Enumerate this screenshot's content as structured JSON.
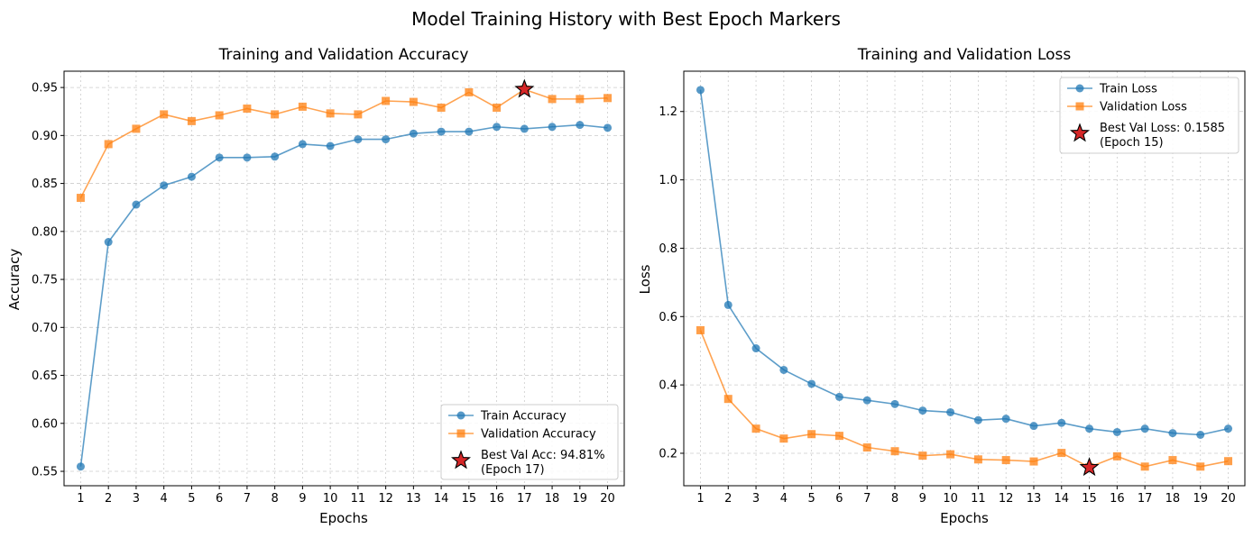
{
  "figure": {
    "suptitle": "Model Training History with Best Epoch Markers"
  },
  "chart_data": [
    {
      "type": "line",
      "title": "Training and Validation Accuracy",
      "xlabel": "Epochs",
      "ylabel": "Accuracy",
      "x": [
        1,
        2,
        3,
        4,
        5,
        6,
        7,
        8,
        9,
        10,
        11,
        12,
        13,
        14,
        15,
        16,
        17,
        18,
        19,
        20
      ],
      "xlim": [
        0.4,
        20.6
      ],
      "ylim": [
        0.535,
        0.967
      ],
      "yticks": [
        0.55,
        0.6,
        0.65,
        0.7,
        0.75,
        0.8,
        0.85,
        0.9,
        0.95
      ],
      "ytick_labels": [
        "0.55",
        "0.60",
        "0.65",
        "0.70",
        "0.75",
        "0.80",
        "0.85",
        "0.90",
        "0.95"
      ],
      "grid": true,
      "legend_position": "lower-right",
      "series": [
        {
          "name": "Train Accuracy",
          "color": "#1f77b4",
          "marker": "circle",
          "values": [
            0.555,
            0.789,
            0.828,
            0.848,
            0.857,
            0.877,
            0.877,
            0.878,
            0.891,
            0.889,
            0.896,
            0.896,
            0.902,
            0.904,
            0.904,
            0.909,
            0.907,
            0.909,
            0.911,
            0.908
          ]
        },
        {
          "name": "Validation Accuracy",
          "color": "#ff7f0e",
          "marker": "square",
          "values": [
            0.835,
            0.891,
            0.907,
            0.922,
            0.915,
            0.921,
            0.928,
            0.922,
            0.93,
            0.923,
            0.922,
            0.936,
            0.935,
            0.929,
            0.945,
            0.929,
            0.948,
            0.938,
            0.938,
            0.939
          ]
        }
      ],
      "best_marker": {
        "x": 17,
        "y": 0.9481,
        "label_line1": "Best Val Acc: 94.81%",
        "label_line2": "(Epoch 17)",
        "color": "#d62728"
      }
    },
    {
      "type": "line",
      "title": "Training and Validation Loss",
      "xlabel": "Epochs",
      "ylabel": "Loss",
      "x": [
        1,
        2,
        3,
        4,
        5,
        6,
        7,
        8,
        9,
        10,
        11,
        12,
        13,
        14,
        15,
        16,
        17,
        18,
        19,
        20
      ],
      "xlim": [
        0.4,
        20.6
      ],
      "ylim": [
        0.105,
        1.318
      ],
      "yticks": [
        0.2,
        0.4,
        0.6,
        0.8,
        1.0,
        1.2
      ],
      "ytick_labels": [
        "0.2",
        "0.4",
        "0.6",
        "0.8",
        "1.0",
        "1.2"
      ],
      "grid": true,
      "legend_position": "upper-right",
      "series": [
        {
          "name": "Train Loss",
          "color": "#1f77b4",
          "marker": "circle",
          "values": [
            1.263,
            0.634,
            0.507,
            0.444,
            0.403,
            0.365,
            0.355,
            0.344,
            0.325,
            0.32,
            0.297,
            0.301,
            0.28,
            0.289,
            0.272,
            0.262,
            0.272,
            0.259,
            0.254,
            0.272
          ]
        },
        {
          "name": "Validation Loss",
          "color": "#ff7f0e",
          "marker": "square",
          "values": [
            0.56,
            0.359,
            0.272,
            0.243,
            0.256,
            0.251,
            0.217,
            0.206,
            0.193,
            0.197,
            0.182,
            0.18,
            0.176,
            0.201,
            0.159,
            0.191,
            0.161,
            0.18,
            0.161,
            0.177
          ]
        }
      ],
      "best_marker": {
        "x": 15,
        "y": 0.1585,
        "label_line1": "Best Val Loss: 0.1585",
        "label_line2": "(Epoch 15)",
        "color": "#d62728"
      }
    }
  ]
}
